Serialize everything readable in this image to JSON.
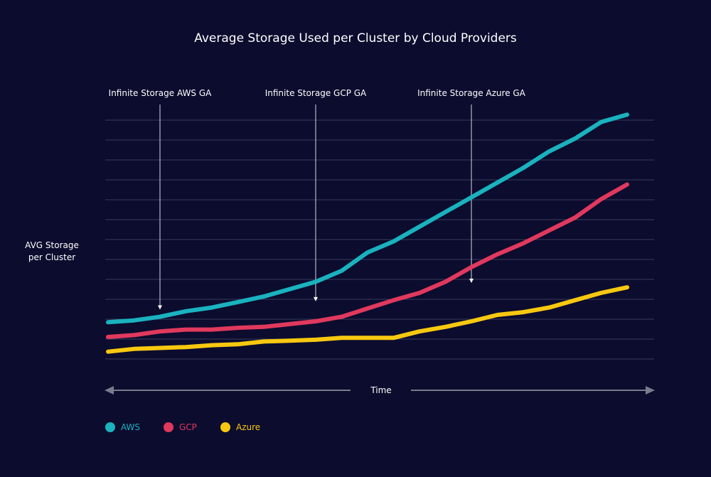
{
  "chart_data": {
    "type": "line",
    "title": "Average Storage Used per Cluster by Cloud Providers",
    "xlabel": "Time",
    "ylabel": "AVG Storage per Cluster",
    "ylabel_lines": [
      "AVG Storage",
      "per Cluster"
    ],
    "grid": true,
    "gridlines": 13,
    "ylim": [
      0,
      13
    ],
    "xlim": [
      0,
      100
    ],
    "legend_position": "bottom-left",
    "annotations": [
      {
        "label": "Infinite Storage AWS GA",
        "x": 10
      },
      {
        "label": "Infinite Storage GCP GA",
        "x": 40
      },
      {
        "label": "Infinite Storage Azure GA",
        "x": 70
      }
    ],
    "series": [
      {
        "name": "AWS",
        "color": "#1ab2be",
        "x": [
          0,
          5,
          10,
          15,
          20,
          25,
          30,
          35,
          40,
          45,
          50,
          55,
          60,
          65,
          70,
          75,
          80,
          85,
          90,
          95,
          100
        ],
        "values": [
          2.0,
          2.1,
          2.3,
          2.6,
          2.8,
          3.1,
          3.4,
          3.8,
          4.2,
          4.8,
          5.8,
          6.4,
          7.2,
          8.0,
          8.8,
          9.6,
          10.4,
          11.3,
          12.0,
          12.9,
          13.3
        ]
      },
      {
        "name": "GCP",
        "color": "#e0395d",
        "x": [
          0,
          5,
          10,
          15,
          20,
          25,
          30,
          35,
          40,
          45,
          50,
          55,
          60,
          65,
          70,
          75,
          80,
          85,
          90,
          95,
          100
        ],
        "values": [
          1.2,
          1.3,
          1.5,
          1.6,
          1.6,
          1.7,
          1.75,
          1.9,
          2.05,
          2.3,
          2.75,
          3.2,
          3.6,
          4.2,
          5.0,
          5.7,
          6.3,
          7.0,
          7.7,
          8.7,
          9.5
        ]
      },
      {
        "name": "Azure",
        "color": "#f8c810",
        "x": [
          0,
          5,
          10,
          15,
          20,
          25,
          30,
          35,
          40,
          45,
          50,
          55,
          60,
          65,
          70,
          75,
          80,
          85,
          90,
          95,
          100
        ],
        "values": [
          0.4,
          0.55,
          0.6,
          0.65,
          0.75,
          0.8,
          0.95,
          1.0,
          1.05,
          1.15,
          1.15,
          1.15,
          1.5,
          1.75,
          2.05,
          2.4,
          2.55,
          2.8,
          3.2,
          3.6,
          3.9
        ]
      }
    ]
  }
}
